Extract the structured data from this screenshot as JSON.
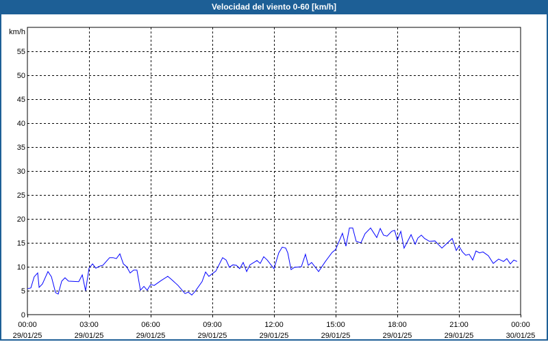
{
  "window": {
    "title": "Velocidad del viento 0-60 [km/h]"
  },
  "chart_data": {
    "type": "line",
    "title": "Velocidad del viento 0-60 [km/h]",
    "ylabel": "km/h",
    "xlabel": "",
    "ylim": [
      0,
      60
    ],
    "xlim_hours": [
      0,
      24
    ],
    "grid": true,
    "yticks": [
      0,
      5,
      10,
      15,
      20,
      25,
      30,
      35,
      40,
      45,
      50,
      55
    ],
    "xticks": [
      {
        "hour": 0,
        "time": "00:00",
        "date": "29/01/25"
      },
      {
        "hour": 3,
        "time": "03:00",
        "date": "29/01/25"
      },
      {
        "hour": 6,
        "time": "06:00",
        "date": "29/01/25"
      },
      {
        "hour": 9,
        "time": "09:00",
        "date": "29/01/25"
      },
      {
        "hour": 12,
        "time": "12:00",
        "date": "29/01/25"
      },
      {
        "hour": 15,
        "time": "15:00",
        "date": "29/01/25"
      },
      {
        "hour": 18,
        "time": "18:00",
        "date": "29/01/25"
      },
      {
        "hour": 21,
        "time": "21:00",
        "date": "29/01/25"
      },
      {
        "hour": 24,
        "time": "00:00",
        "date": "30/01/25"
      }
    ],
    "series": [
      {
        "name": "Velocidad del viento",
        "color": "#0000ff",
        "x": [
          0,
          0.17,
          0.33,
          0.5,
          0.57,
          0.73,
          1.0,
          1.17,
          1.37,
          1.5,
          1.67,
          1.83,
          2.0,
          2.5,
          2.67,
          2.83,
          3.0,
          3.17,
          3.33,
          3.5,
          3.67,
          4.0,
          4.17,
          4.33,
          4.5,
          4.67,
          4.83,
          5.0,
          5.17,
          5.33,
          5.5,
          5.67,
          5.83,
          6.0,
          6.17,
          6.5,
          6.83,
          7.0,
          7.33,
          7.67,
          7.83,
          8.0,
          8.17,
          8.5,
          8.67,
          8.83,
          9.17,
          9.5,
          9.67,
          9.83,
          10.0,
          10.17,
          10.33,
          10.5,
          10.67,
          10.83,
          11.17,
          11.33,
          11.5,
          11.67,
          12.0,
          12.23,
          12.4,
          12.57,
          12.67,
          12.83,
          13.0,
          13.33,
          13.53,
          13.67,
          13.83,
          14.17,
          14.5,
          14.83,
          15.0,
          15.33,
          15.5,
          15.67,
          15.83,
          16.0,
          16.23,
          16.43,
          16.7,
          17.0,
          17.17,
          17.33,
          17.5,
          17.73,
          17.87,
          18.0,
          18.17,
          18.33,
          18.67,
          18.87,
          19.0,
          19.17,
          19.33,
          19.57,
          19.83,
          20.17,
          20.67,
          20.87,
          21.0,
          21.17,
          21.33,
          21.5,
          21.67,
          21.83,
          22.0,
          22.17,
          22.43,
          22.67,
          22.93,
          23.17,
          23.33,
          23.5,
          23.67,
          23.83
        ],
        "values": [
          5.4,
          5.6,
          7.9,
          8.7,
          5.7,
          6.4,
          9.0,
          7.9,
          4.6,
          4.3,
          7.0,
          7.7,
          7.0,
          6.9,
          8.3,
          5.0,
          9.7,
          10.6,
          9.7,
          10.1,
          10.3,
          11.9,
          11.9,
          11.7,
          12.7,
          10.6,
          10.0,
          8.7,
          9.3,
          9.3,
          5.1,
          5.9,
          5.1,
          6.3,
          6.1,
          7.1,
          8.0,
          7.4,
          6.1,
          4.4,
          4.7,
          4.1,
          4.9,
          6.9,
          8.9,
          8.0,
          9.1,
          11.9,
          11.4,
          9.9,
          10.4,
          10.3,
          9.6,
          10.9,
          9.0,
          10.4,
          11.3,
          10.7,
          12.1,
          11.4,
          9.6,
          12.9,
          14.1,
          13.9,
          12.9,
          9.4,
          9.9,
          10.0,
          12.6,
          10.3,
          10.9,
          9.0,
          11.1,
          13.0,
          13.6,
          17.0,
          14.3,
          18.1,
          18.1,
          15.3,
          15.0,
          16.9,
          18.1,
          16.1,
          18.0,
          16.6,
          16.4,
          17.4,
          17.6,
          15.6,
          17.4,
          13.9,
          16.7,
          14.7,
          16.0,
          16.6,
          15.9,
          15.3,
          15.4,
          13.9,
          15.9,
          13.4,
          14.3,
          13.1,
          12.4,
          12.6,
          11.4,
          13.3,
          12.9,
          13.1,
          12.3,
          10.7,
          11.6,
          11.1,
          11.7,
          10.6,
          11.4,
          11.1
        ]
      }
    ]
  }
}
